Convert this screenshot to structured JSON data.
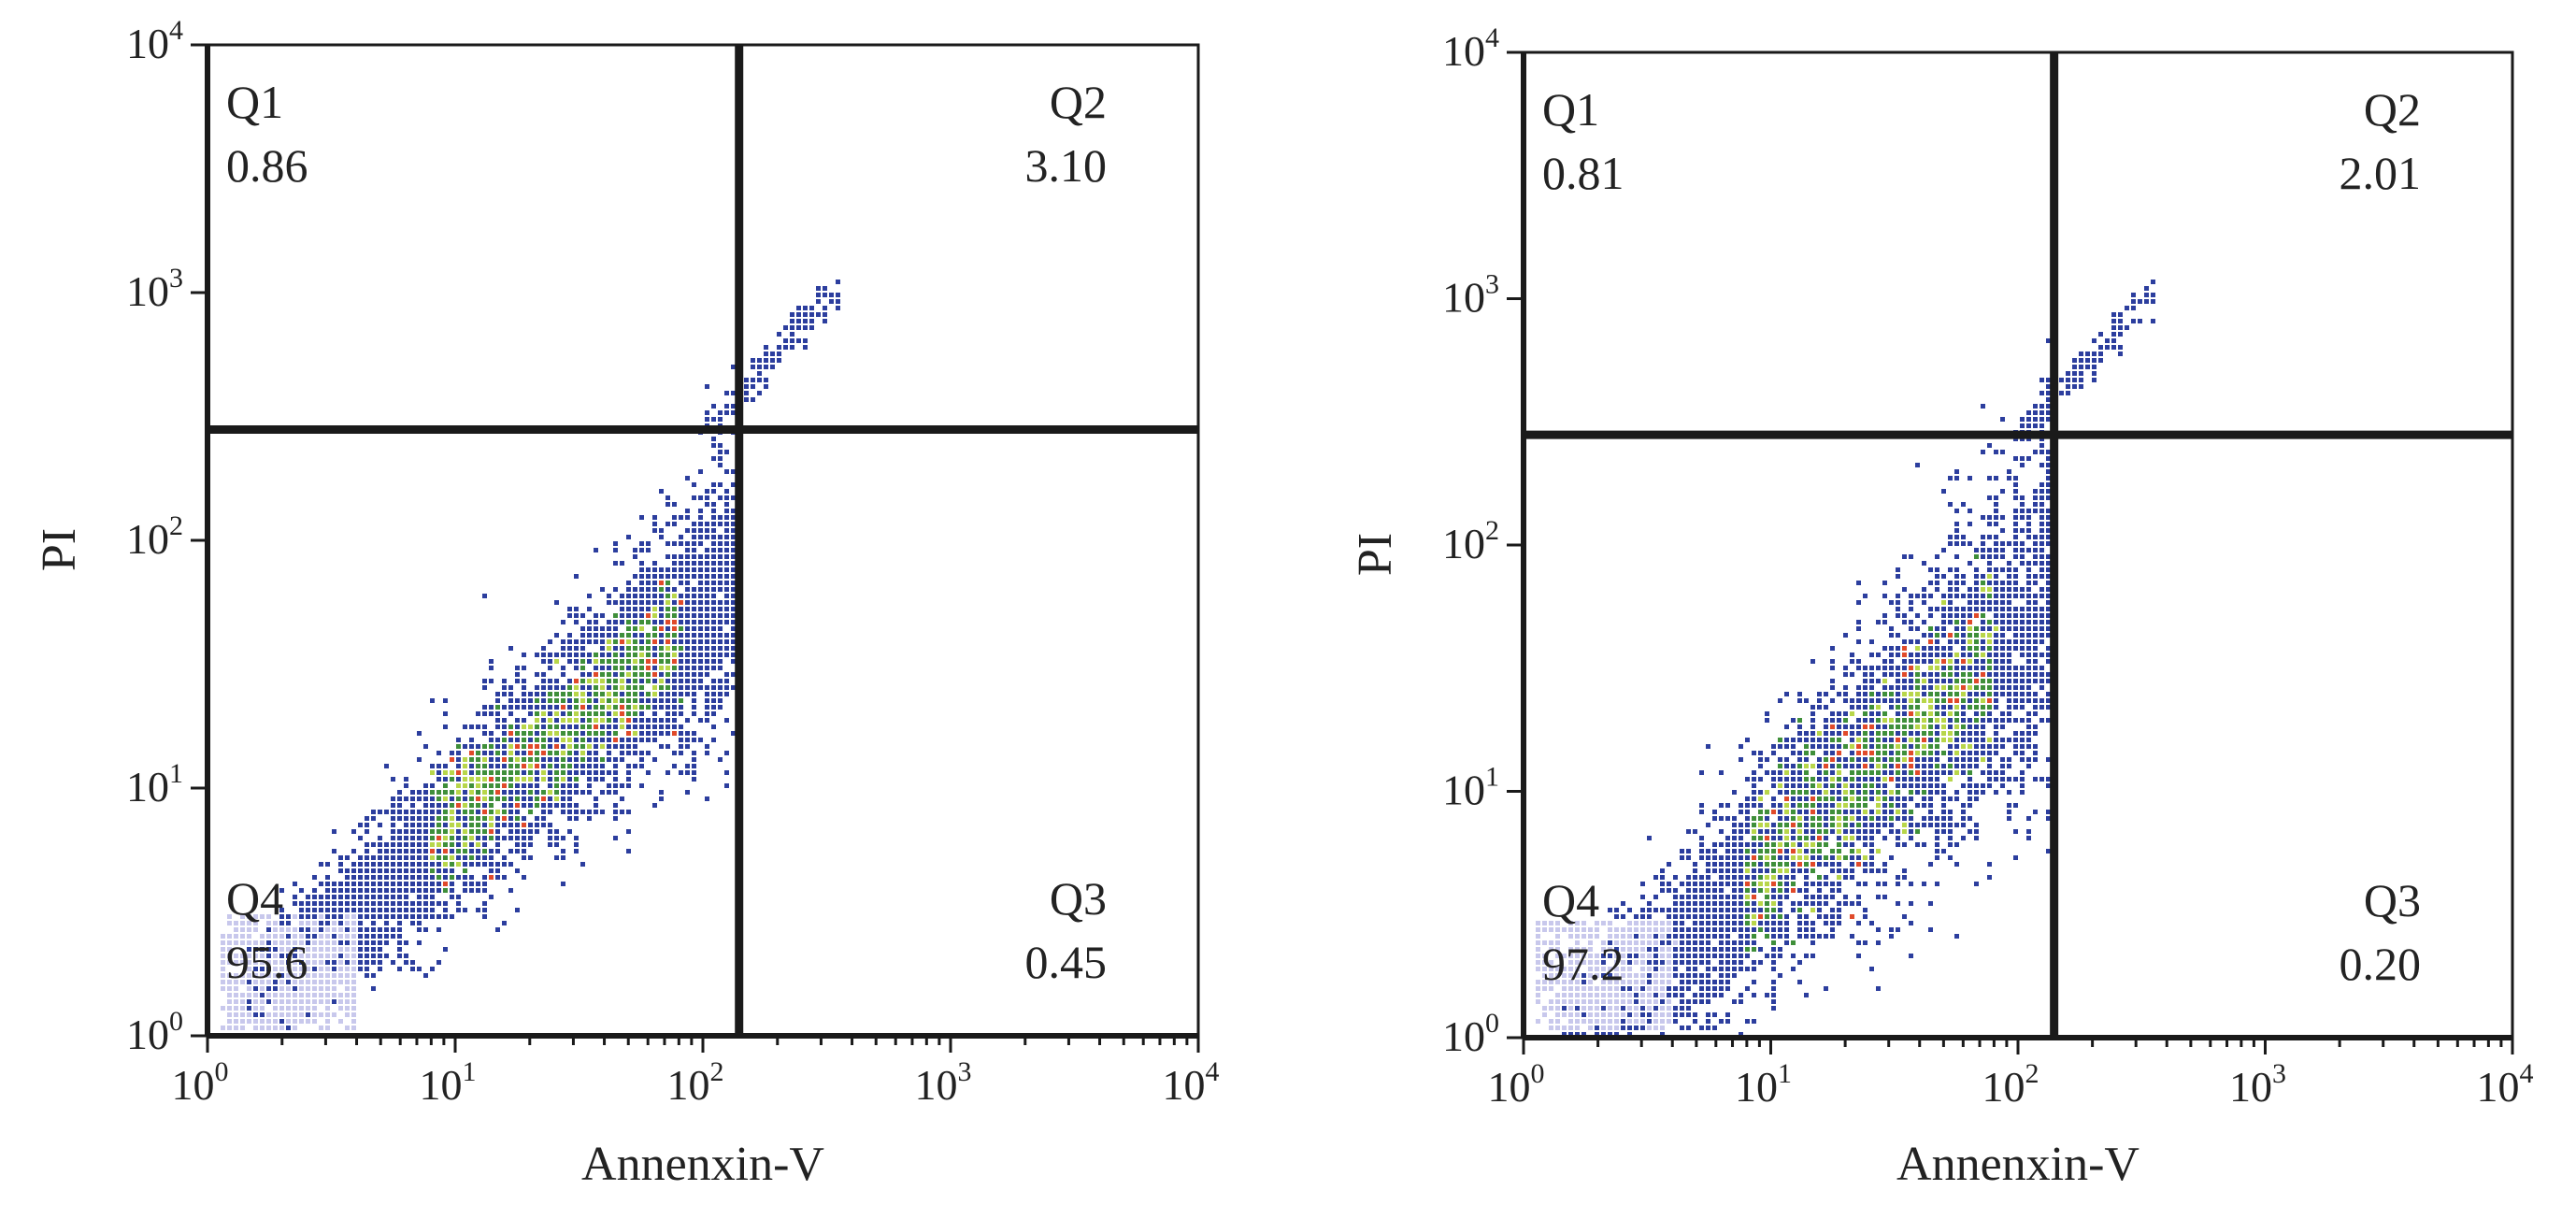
{
  "chart_data": [
    {
      "type": "scatter",
      "xlabel": "Annenxin-V",
      "ylabel": "PI",
      "xscale": "log",
      "yscale": "log",
      "xlim": [
        1,
        10000
      ],
      "ylim": [
        1,
        10000
      ],
      "tick_base": "10",
      "tick_exponents": [
        "0",
        "1",
        "2",
        "3",
        "4"
      ],
      "gate": {
        "x": 140,
        "y": 280
      },
      "quadrants": [
        {
          "label": "Q1",
          "value": "0.86",
          "position": "top-left"
        },
        {
          "label": "Q2",
          "value": "3.10",
          "position": "top-right"
        },
        {
          "label": "Q3",
          "value": "0.45",
          "position": "bottom-right"
        },
        {
          "label": "Q4",
          "value": "95.6",
          "position": "bottom-left"
        }
      ],
      "grid": false
    },
    {
      "type": "scatter",
      "xlabel": "Annenxin-V",
      "ylabel": "PI",
      "xscale": "log",
      "yscale": "log",
      "xlim": [
        1,
        10000
      ],
      "ylim": [
        1,
        10000
      ],
      "tick_base": "10",
      "tick_exponents": [
        "0",
        "1",
        "2",
        "3",
        "4"
      ],
      "gate": {
        "x": 140,
        "y": 280
      },
      "quadrants": [
        {
          "label": "Q1",
          "value": "0.81",
          "position": "top-left"
        },
        {
          "label": "Q2",
          "value": "2.01",
          "position": "top-right"
        },
        {
          "label": "Q3",
          "value": "0.20",
          "position": "bottom-right"
        },
        {
          "label": "Q4",
          "value": "97.2",
          "position": "bottom-left"
        }
      ],
      "grid": false
    }
  ],
  "colors": {
    "axis": "#1a1a1a",
    "density": [
      "#c8c8ec",
      "#2c3e9e",
      "#3f8f3a",
      "#b8d64a",
      "#e04a2a"
    ]
  }
}
